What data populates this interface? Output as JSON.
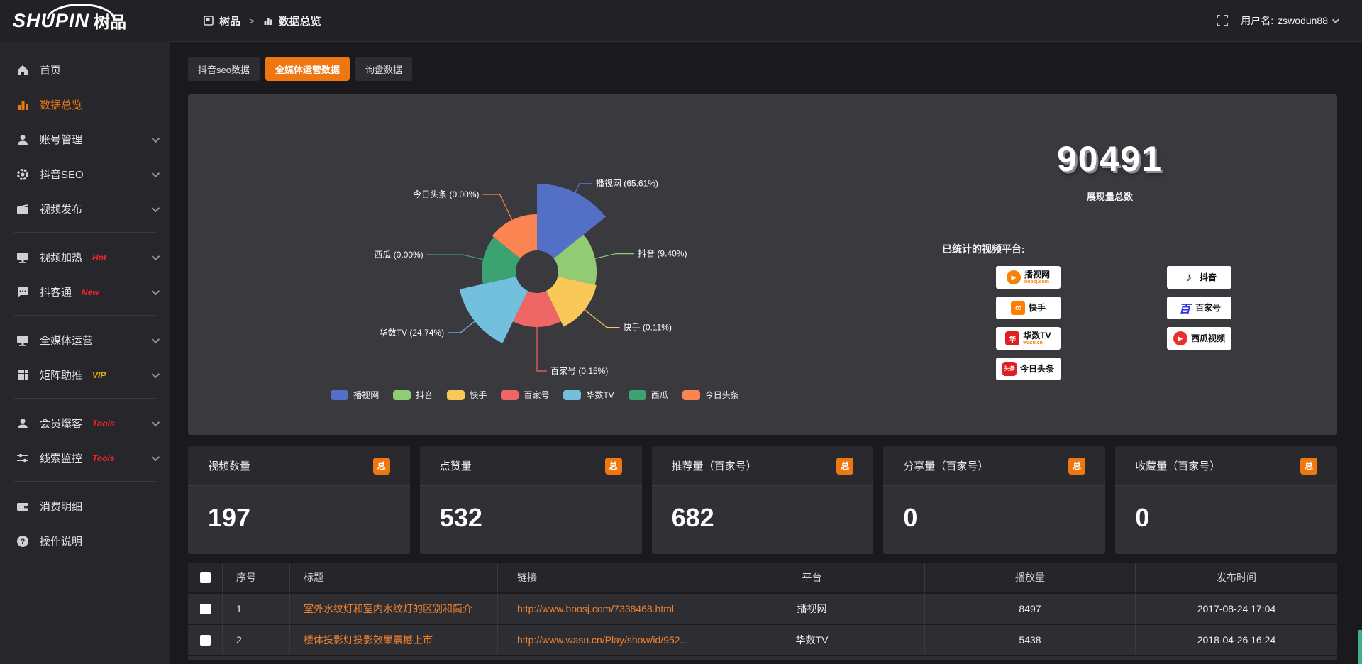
{
  "topbar": {
    "brand_latin": "SHUPIN",
    "brand_cjk": "树品",
    "breadcrumb": [
      {
        "label": "树品"
      },
      {
        "label": "数据总览"
      }
    ],
    "breadcrumb_sep": ">",
    "username_label": "用户名:",
    "username": "zswodun88"
  },
  "sidebar": {
    "items": [
      {
        "label": "首页"
      },
      {
        "label": "数据总览",
        "active": true
      },
      {
        "label": "账号管理"
      },
      {
        "label": "抖音SEO"
      },
      {
        "label": "视频发布"
      },
      {
        "label": "视频加热",
        "badge": "Hot"
      },
      {
        "label": "抖客通",
        "badge": "New"
      },
      {
        "label": "全媒体运营"
      },
      {
        "label": "矩阵助推",
        "badge": "VIP"
      },
      {
        "label": "会员爆客",
        "badge": "Tools"
      },
      {
        "label": "线索监控",
        "badge": "Tools"
      },
      {
        "label": "消费明细"
      },
      {
        "label": "操作说明"
      }
    ]
  },
  "tabs": [
    {
      "label": "抖音seo数据"
    },
    {
      "label": "全媒体运营数据",
      "active": true
    },
    {
      "label": "询盘数据"
    }
  ],
  "chart_data": {
    "type": "pie",
    "subtype": "rose",
    "labels": [
      "播视网",
      "抖音",
      "快手",
      "百家号",
      "华数TV",
      "西瓜",
      "今日头条"
    ],
    "values": [
      65.61,
      9.4,
      0.11,
      0.15,
      24.74,
      0.0,
      0.0
    ],
    "unit": "%",
    "colors": [
      "#5470c6",
      "#91cc75",
      "#fac858",
      "#ee6666",
      "#73c0de",
      "#3ba272",
      "#fc8452"
    ],
    "legend": [
      "播视网",
      "抖音",
      "快手",
      "百家号",
      "华数TV",
      "西瓜",
      "今日头条"
    ],
    "legend_position": "bottom",
    "label_format": "name (pct%)"
  },
  "summary": {
    "total_value": "90491",
    "total_label": "展现量总数",
    "platforms_title": "已统计的视频平台:",
    "platforms_left": [
      {
        "name": "播视网",
        "sub": "boosj.com"
      },
      {
        "name": "快手"
      },
      {
        "name": "华数TV",
        "sub": "wasu.cn"
      },
      {
        "name": "今日头条",
        "logo_text": "头条"
      }
    ],
    "platforms_right": [
      {
        "name": "抖音"
      },
      {
        "name": "百家号",
        "logo_text": "百"
      },
      {
        "name": "西瓜视频"
      }
    ]
  },
  "cards": [
    {
      "title": "视频数量",
      "badge": "总",
      "value": "197"
    },
    {
      "title": "点赞量",
      "badge": "总",
      "value": "532"
    },
    {
      "title": "推荐量（百家号）",
      "badge": "总",
      "value": "682"
    },
    {
      "title": "分享量（百家号）",
      "badge": "总",
      "value": "0"
    },
    {
      "title": "收藏量（百家号）",
      "badge": "总",
      "value": "0"
    }
  ],
  "table": {
    "headers": [
      "序号",
      "标题",
      "链接",
      "平台",
      "播放量",
      "发布时间"
    ],
    "rows": [
      {
        "index": "1",
        "title": "室外水纹灯和室内水纹灯的区别和简介",
        "link": "http://www.boosj.com/7338468.html",
        "platform": "播视网",
        "plays": "8497",
        "time": "2017-08-24 17:04"
      },
      {
        "index": "2",
        "title": "楼体投影灯投影效果震撼上市",
        "link": "http://www.wasu.cn/Play/show/id/952...",
        "platform": "华数TV",
        "plays": "5438",
        "time": "2018-04-26 16:24"
      }
    ]
  },
  "colors": {
    "accent": "#ee7711",
    "link": "#ee8233",
    "hot": "#f5222d",
    "vip": "#e9b307"
  }
}
